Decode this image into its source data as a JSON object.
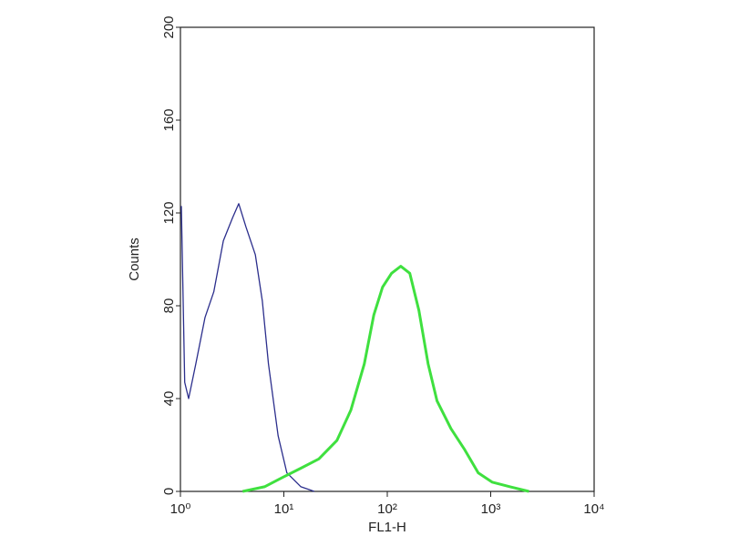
{
  "chart_data": {
    "type": "line",
    "xscale": "log",
    "xlabel": "FL1-H",
    "ylabel": "Counts",
    "xlim": [
      1,
      10000
    ],
    "xticks": [
      {
        "value": 1,
        "label": "10⁰"
      },
      {
        "value": 10,
        "label": "10¹"
      },
      {
        "value": 100,
        "label": "10²"
      },
      {
        "value": 1000,
        "label": "10³"
      },
      {
        "value": 10000,
        "label": "10⁴"
      }
    ],
    "ylim": [
      0,
      200
    ],
    "yticks": [
      0,
      40,
      80,
      120,
      160,
      200
    ],
    "series": [
      {
        "color": "#2b2e8c",
        "width": 1.3,
        "x": [
          1.02,
          1.1,
          1.2,
          1.41,
          1.73,
          2.1,
          2.6,
          3.2,
          3.66,
          4.3,
          5.3,
          6.2,
          7.1,
          8.8,
          10.7,
          14.6,
          19.7
        ],
        "values": [
          123,
          47,
          40,
          55,
          75,
          86,
          108,
          118,
          124,
          114,
          102,
          82,
          55,
          24,
          8,
          2,
          0
        ]
      },
      {
        "color": "#3fe03f",
        "width": 3,
        "x": [
          4,
          6.5,
          9.7,
          14.6,
          21.8,
          32.6,
          44.4,
          60,
          74,
          90,
          110,
          135,
          165,
          202,
          248,
          303,
          413,
          560,
          758,
          1030,
          1540,
          2340
        ],
        "values": [
          0,
          2,
          6,
          10,
          14,
          22,
          35,
          55,
          76,
          88,
          94,
          97,
          94,
          78,
          55,
          39,
          27,
          18,
          8,
          4,
          2,
          0
        ]
      }
    ]
  }
}
